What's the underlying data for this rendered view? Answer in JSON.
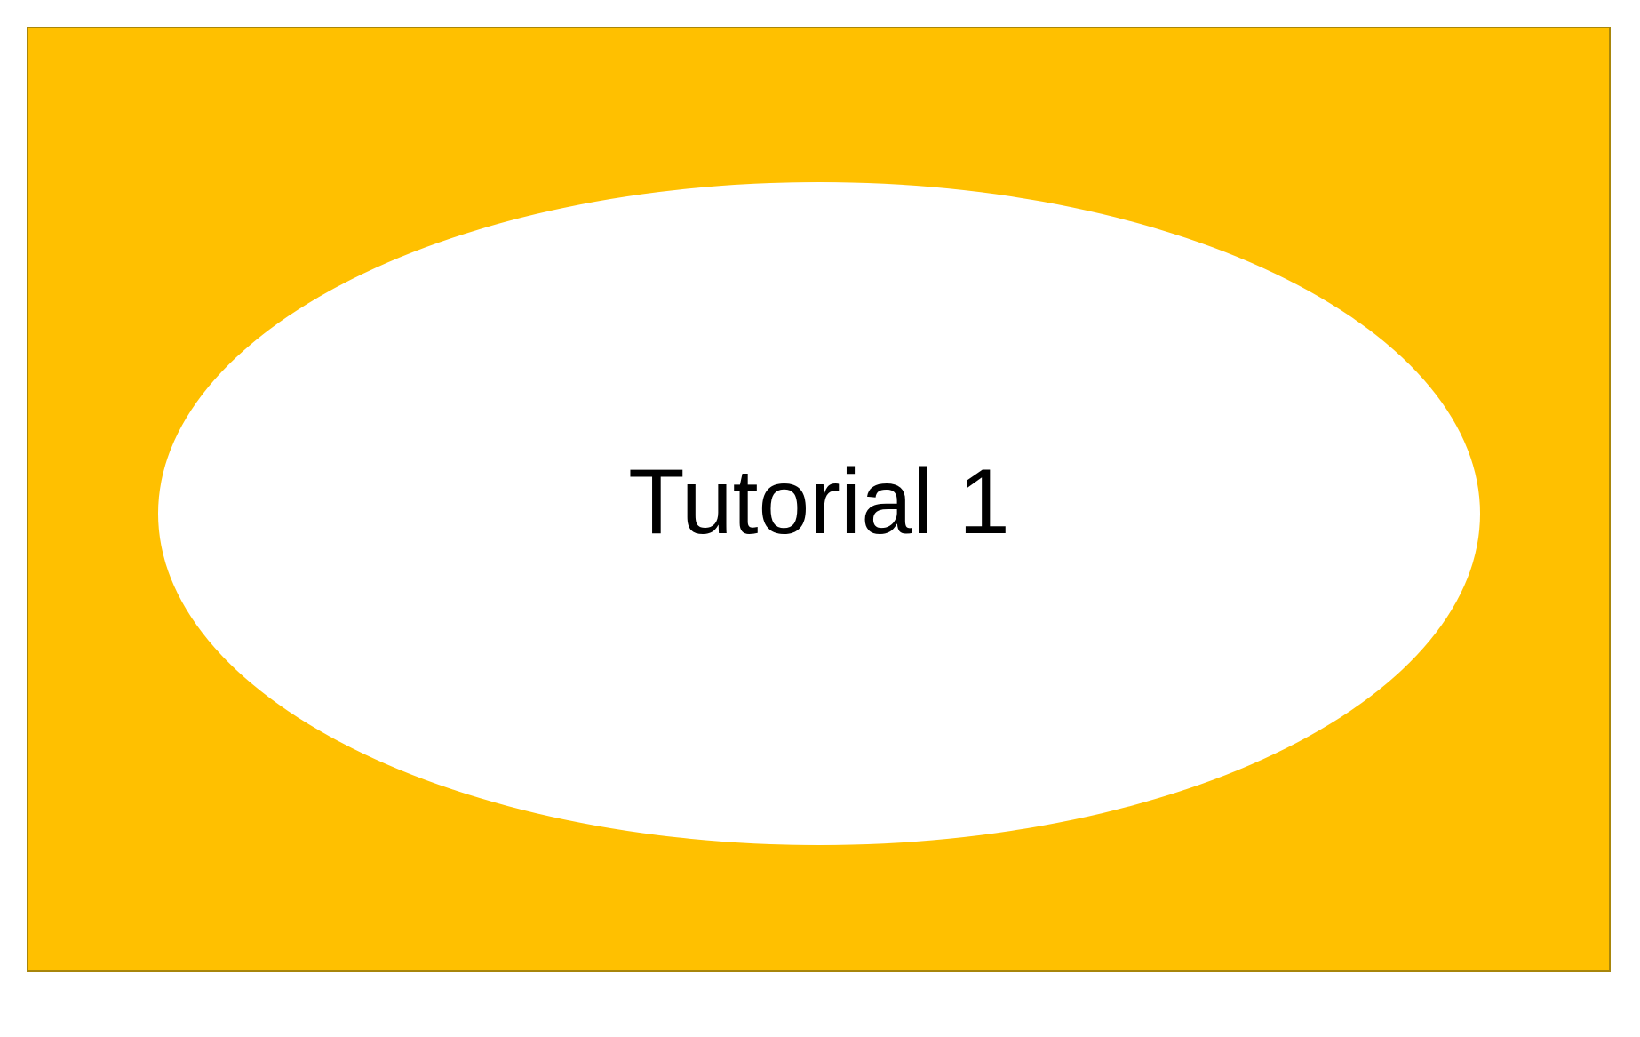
{
  "slide": {
    "title": "Tutorial 1"
  },
  "colors": {
    "background": "#ffffff",
    "frame_fill": "#ffc000",
    "frame_border": "#a8860b",
    "ellipse_fill": "#ffffff",
    "text": "#000000"
  }
}
